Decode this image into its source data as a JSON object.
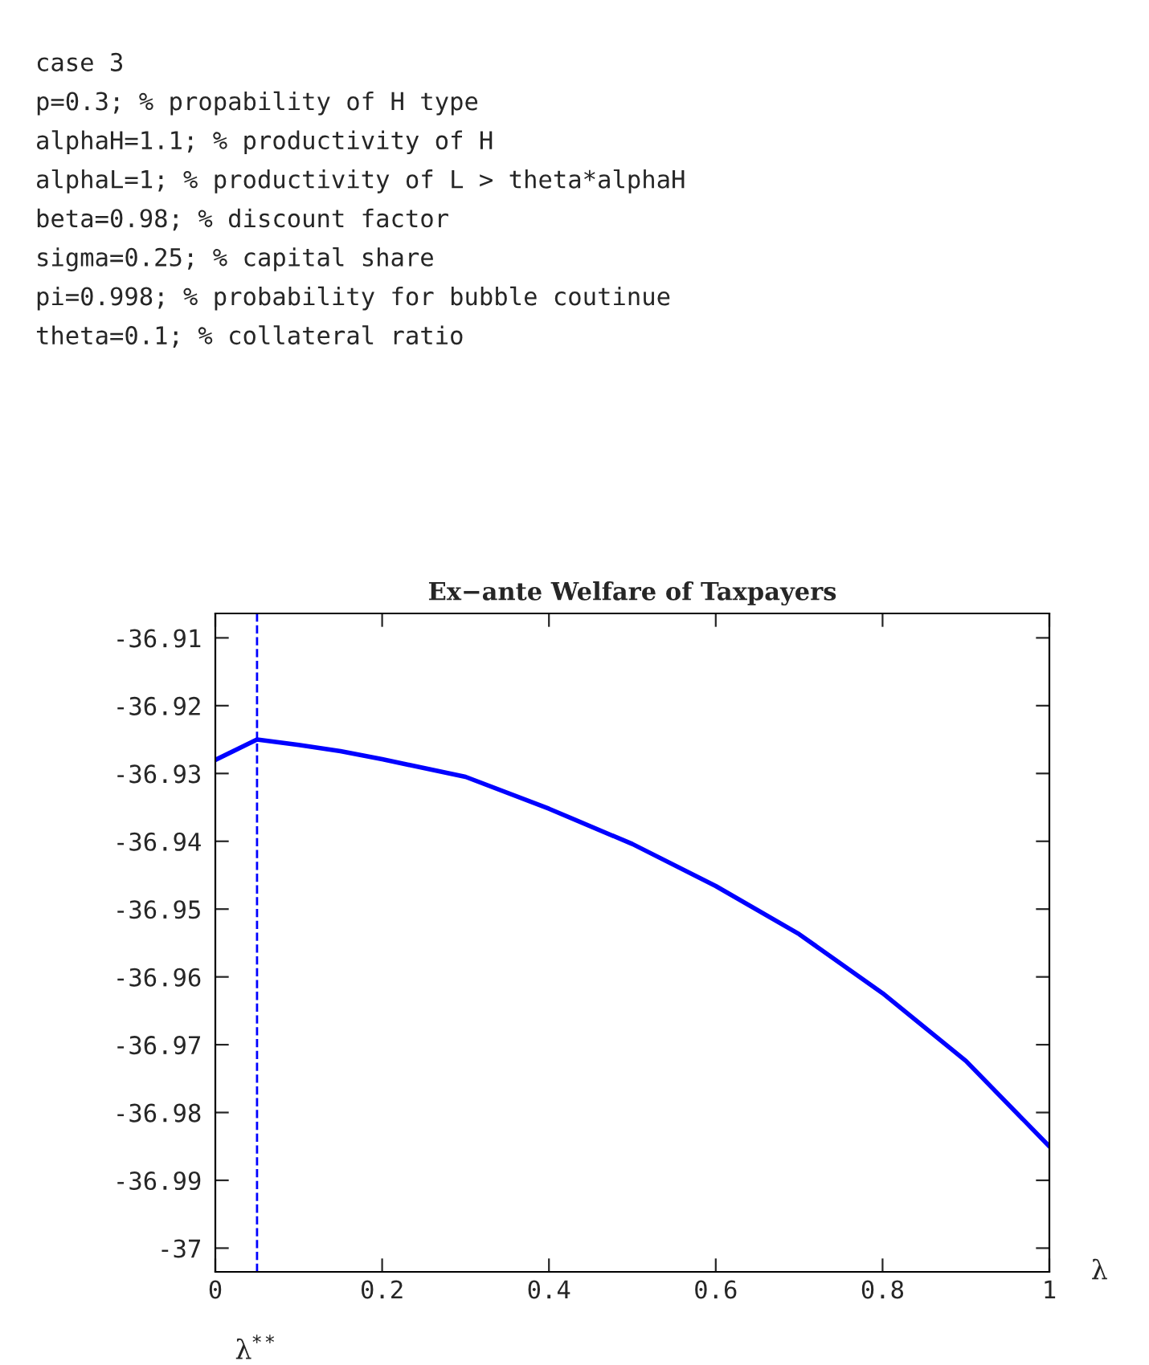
{
  "chart_data": {
    "type": "line",
    "title": "Ex−ante Welfare of Taxpayers",
    "xlabel": "λ",
    "annotations": [
      "case 3",
      "p=0.3; % propability of H type",
      "alphaH=1.1; % productivity of H",
      "alphaL=1; % productivity of L > theta*alphaH",
      "beta=0.98; % discount factor",
      "sigma=0.25; % capital share",
      "pi=0.998; % probability for bubble coutinue",
      "theta=0.1; % collateral ratio"
    ],
    "x": [
      0,
      0.05,
      0.1,
      0.15,
      0.2,
      0.3,
      0.4,
      0.5,
      0.6,
      0.7,
      0.8,
      0.9,
      1.0
    ],
    "series": [
      {
        "color": "#0000ff",
        "values": [
          -36.928,
          -36.925,
          -36.9258,
          -36.9267,
          -36.9279,
          -36.9305,
          -36.9352,
          -36.9404,
          -36.9466,
          -36.9537,
          -36.9624,
          -36.9724,
          -36.985
        ]
      }
    ],
    "xlim": [
      0,
      1
    ],
    "xticks": [
      0,
      0.2,
      0.4,
      0.6,
      0.8,
      1
    ],
    "ylim": [
      -37.0035,
      -36.9064
    ],
    "yticks": [
      -37,
      -36.99,
      -36.98,
      -36.97,
      -36.96,
      -36.95,
      -36.94,
      -36.93,
      -36.92,
      -36.91
    ],
    "ref_lines": [
      {
        "axis": "x",
        "value": 0.05,
        "label": "λ$^{**}$",
        "color": "#0000ff",
        "line_style": "dashed"
      }
    ],
    "line_style": "solid",
    "marker": "none",
    "grid": false,
    "legend": false
  }
}
